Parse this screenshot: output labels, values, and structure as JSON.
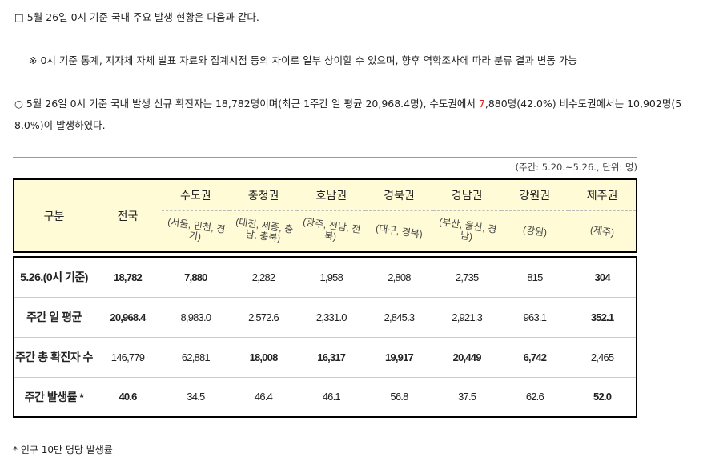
{
  "line1": "□ 5월 26일 0시 기준 국내 주요 발생 현황은 다음과 같다.",
  "line2": "※ 0시 기준 통계, 지자체 자체 발표 자료와 집계시점 등의 차이로 일부 상이할 수 있으며, 향후 역학조사에 따라 분류 결과 변동 가능",
  "line3_a": "○ 5월 26일 0시 기준 국내 발생 신규 확진자는 18,782명이며(최근 1주간 일 평균 20,968.4명), 수도권에서 ",
  "line3_red": "7",
  "line3_b": ",880명(42.0%) 비수도권에서는 10,902명(5",
  "line4": "8.0%)이 발생하였다.",
  "unit_note": "(주간: 5.20.~5.26., 단위: 명)",
  "table": {
    "header_category": "구분",
    "header_total": "전국",
    "regions": [
      {
        "name": "수도권",
        "sub": "(서울, 인천, 경기)"
      },
      {
        "name": "충청권",
        "sub": "(대전, 세종, 충남, 충북)"
      },
      {
        "name": "호남권",
        "sub": "(광주, 전남, 전북)"
      },
      {
        "name": "경북권",
        "sub": "(대구, 경북)"
      },
      {
        "name": "경남권",
        "sub": "(부산, 울산, 경남)"
      },
      {
        "name": "강원권",
        "sub": "(강원)"
      },
      {
        "name": "제주권",
        "sub": "(제주)"
      }
    ],
    "rows": [
      {
        "label": "5.26.(0시 기준)",
        "values": [
          "18,782",
          "7,880",
          "2,282",
          "1,958",
          "2,808",
          "2,735",
          "815",
          "304"
        ]
      },
      {
        "label": "주간 일 평균",
        "values": [
          "20,968.4",
          "8,983.0",
          "2,572.6",
          "2,331.0",
          "2,845.3",
          "2,921.3",
          "963.1",
          "352.1"
        ]
      },
      {
        "label": "주간 총 확진자 수",
        "values": [
          "146,779",
          "62,881",
          "18,008",
          "16,317",
          "19,917",
          "20,449",
          "6,742",
          "2,465"
        ]
      },
      {
        "label": "주간 발생률 *",
        "values": [
          "40.6",
          "34.5",
          "46.4",
          "46.1",
          "56.8",
          "37.5",
          "62.6",
          "52.0"
        ]
      }
    ]
  },
  "footnote": "* 인구 10만 명당 발생률"
}
